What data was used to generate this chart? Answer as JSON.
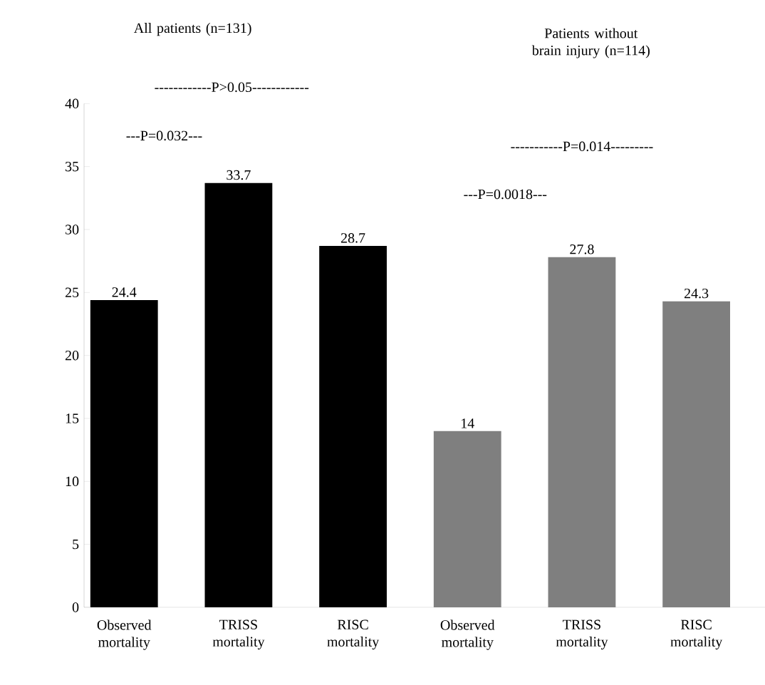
{
  "chart_data": {
    "type": "bar",
    "categories": [
      "Observed mortality",
      "TRISS mortality",
      "RISC mortality",
      "Observed mortality",
      "TRISS mortality",
      "RISC mortality"
    ],
    "values": [
      24.4,
      33.7,
      28.7,
      14,
      27.8,
      24.3
    ],
    "colors": [
      "#000000",
      "#000000",
      "#000000",
      "#7f7f7f",
      "#7f7f7f",
      "#7f7f7f"
    ],
    "ylim": [
      0,
      40
    ],
    "yticks": [
      0,
      5,
      10,
      15,
      20,
      25,
      30,
      35,
      40
    ],
    "data_labels": true,
    "grid": false,
    "annotations": [
      "All patients (n=131)",
      "Patients without brain injury (n=114)",
      "------------P>0.05------------",
      "---P=0.032---",
      "-----------P=0.014---------",
      "---P=0.0018---"
    ]
  }
}
